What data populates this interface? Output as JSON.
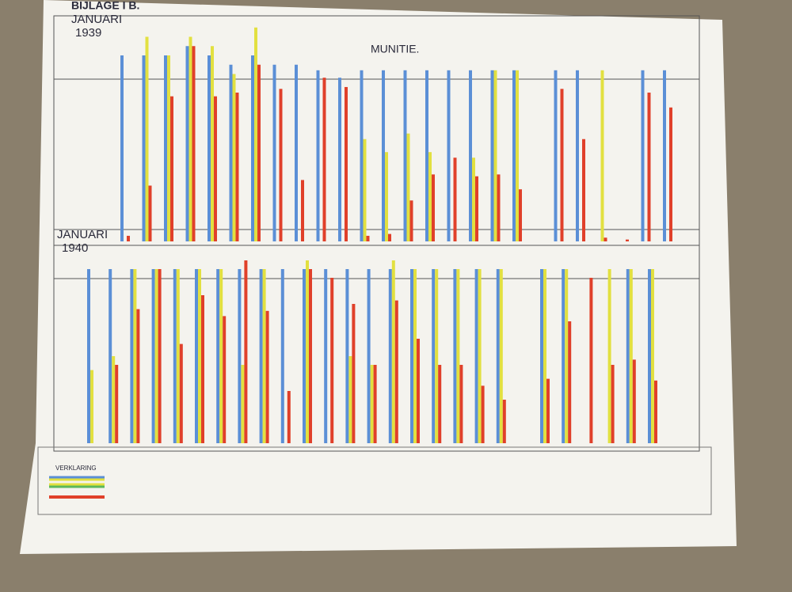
{
  "chart_data": [
    {
      "type": "bar",
      "title": "BIJLAGE I B.",
      "subtitle": "MUNITIE.",
      "period": [
        "JANUARI",
        "1939"
      ],
      "ylim": [
        0,
        115
      ],
      "series": [
        {
          "color": "#5b8fd6",
          "values": [
            100,
            100,
            100,
            105,
            100,
            95,
            100,
            95,
            95,
            92,
            88,
            92,
            92,
            92,
            92,
            92,
            92,
            92,
            92,
            92,
            92,
            null,
            null,
            92,
            92
          ]
        },
        {
          "color": "#e2e040",
          "values": [
            null,
            110,
            100,
            110,
            105,
            90,
            115,
            null,
            null,
            null,
            null,
            55,
            48,
            58,
            48,
            null,
            45,
            92,
            92,
            null,
            null,
            92,
            null,
            null,
            null
          ]
        },
        {
          "color": "#e0402a",
          "values": [
            3,
            30,
            78,
            105,
            78,
            80,
            95,
            82,
            33,
            88,
            83,
            3,
            4,
            22,
            36,
            45,
            35,
            36,
            28,
            82,
            55,
            2,
            1,
            80,
            72
          ]
        }
      ]
    },
    {
      "type": "bar",
      "period": [
        "JANUARI",
        "1940"
      ],
      "legend_title": "VERKLARING",
      "ylim": [
        0,
        115
      ],
      "series": [
        {
          "color": "#5b8fd6",
          "values": [
            100,
            100,
            100,
            100,
            100,
            100,
            100,
            100,
            100,
            100,
            100,
            100,
            100,
            100,
            100,
            100,
            100,
            100,
            100,
            100,
            100,
            100,
            null,
            null,
            100,
            100
          ]
        },
        {
          "color": "#e2e040",
          "values": [
            42,
            50,
            100,
            100,
            100,
            100,
            100,
            45,
            100,
            null,
            105,
            null,
            50,
            45,
            105,
            100,
            100,
            100,
            100,
            100,
            100,
            100,
            null,
            100,
            100,
            100
          ]
        },
        {
          "color": "#e0402a",
          "values": [
            null,
            45,
            77,
            100,
            57,
            85,
            73,
            105,
            76,
            30,
            100,
            95,
            80,
            45,
            82,
            60,
            45,
            45,
            33,
            25,
            37,
            70,
            95,
            45,
            48,
            36
          ]
        }
      ]
    }
  ]
}
